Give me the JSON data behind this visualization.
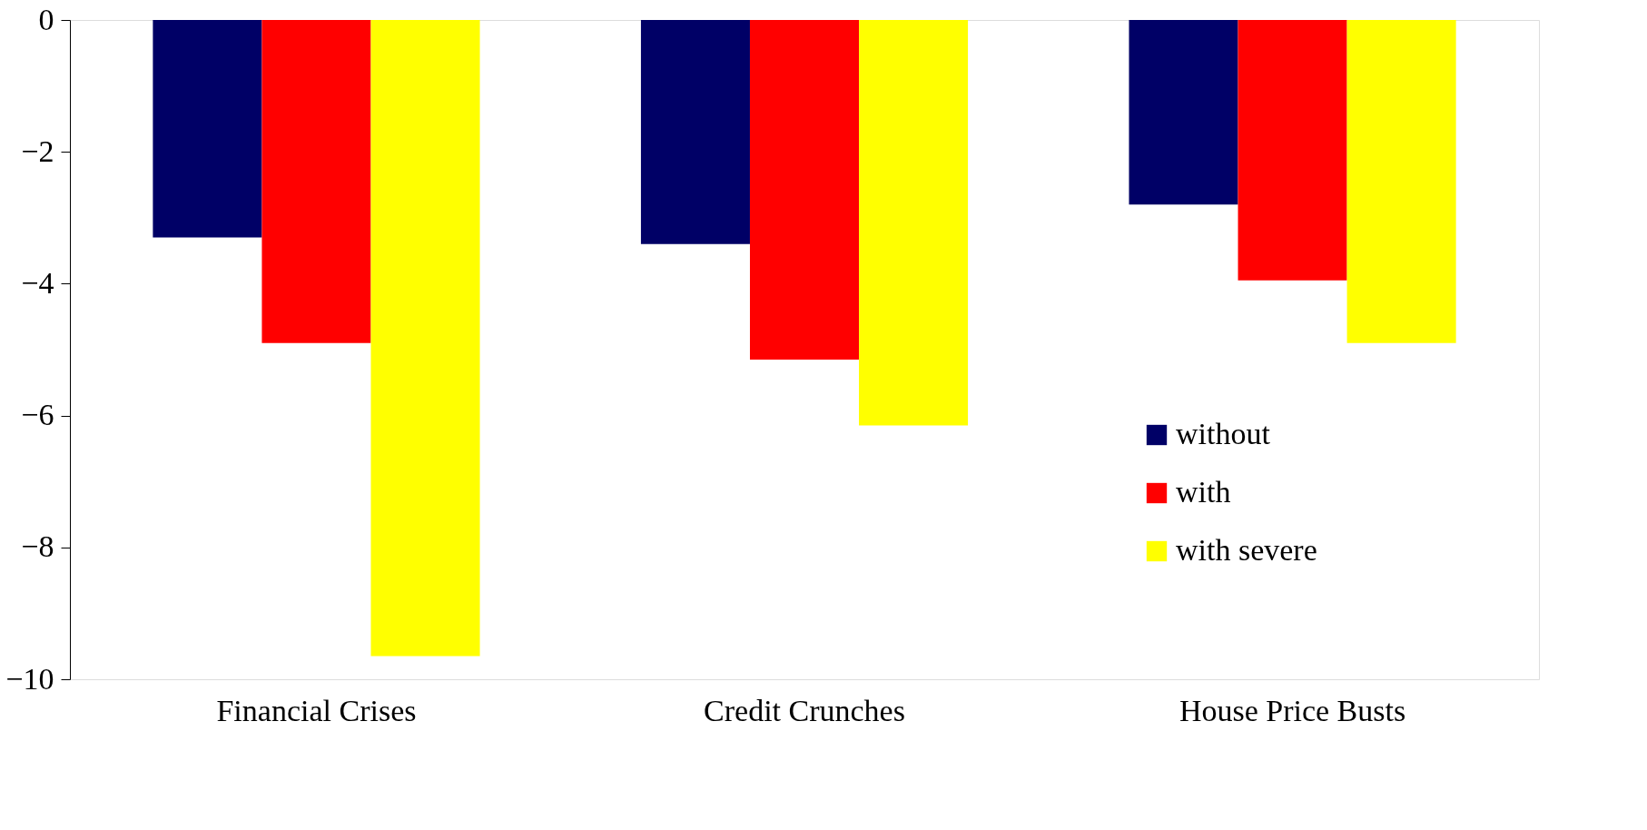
{
  "chart_data": {
    "type": "bar",
    "categories": [
      "Financial Crises",
      "Credit Crunches",
      "House Price Busts"
    ],
    "series": [
      {
        "name": "without",
        "color": "#000066",
        "values": [
          -3.3,
          -3.4,
          -2.8
        ]
      },
      {
        "name": "with",
        "color": "#ff0000",
        "values": [
          -4.9,
          -5.15,
          -3.95
        ]
      },
      {
        "name": "with severe",
        "color": "#ffff00",
        "values": [
          -9.65,
          -6.15,
          -4.9
        ]
      }
    ],
    "ylim": [
      -10,
      0
    ],
    "yticks": [
      -10,
      -8,
      -6,
      -4,
      -2,
      0
    ],
    "grid": false,
    "legend": "right"
  }
}
